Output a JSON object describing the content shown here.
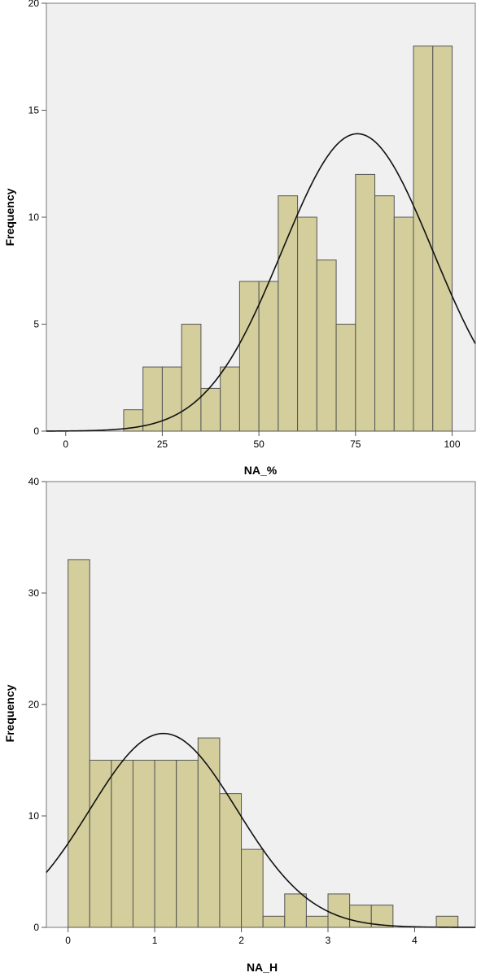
{
  "chart_data": [
    {
      "type": "bar",
      "title": "",
      "xlabel": "NA_%",
      "ylabel": "Frequency",
      "xlim": [
        -5,
        106
      ],
      "ylim": [
        0,
        20
      ],
      "xticks": [
        0,
        25,
        50,
        75,
        100
      ],
      "yticks": [
        0,
        5,
        10,
        15,
        20
      ],
      "grid": false,
      "bin_edges": [
        15,
        20,
        25,
        30,
        35,
        40,
        45,
        50,
        55,
        60,
        65,
        70,
        75,
        80,
        85,
        90,
        95,
        100
      ],
      "values": [
        1,
        3,
        3,
        5,
        2,
        3,
        7,
        7,
        11,
        10,
        8,
        5,
        12,
        11,
        10,
        18,
        18
      ],
      "normal_curve": {
        "mean": 75.5,
        "sd": 19.5,
        "peak": 13.9
      }
    },
    {
      "type": "bar",
      "title": "",
      "xlabel": "NA_H",
      "ylabel": "Frequency",
      "xlim": [
        -0.25,
        4.7
      ],
      "ylim": [
        0,
        40
      ],
      "xticks": [
        0,
        1,
        2,
        3,
        4
      ],
      "yticks": [
        0,
        10,
        20,
        30,
        40
      ],
      "grid": false,
      "bin_edges": [
        0,
        0.25,
        0.5,
        0.75,
        1.0,
        1.25,
        1.5,
        1.75,
        2.0,
        2.25,
        2.5,
        2.75,
        3.0,
        3.25,
        3.5,
        3.75,
        4.0,
        4.25,
        4.5
      ],
      "values": [
        33,
        15,
        15,
        15,
        15,
        15,
        17,
        12,
        7,
        1,
        3,
        1,
        3,
        2,
        2,
        0,
        0,
        1
      ],
      "normal_curve": {
        "mean": 1.1,
        "sd": 0.85,
        "peak": 17.4
      }
    }
  ]
}
